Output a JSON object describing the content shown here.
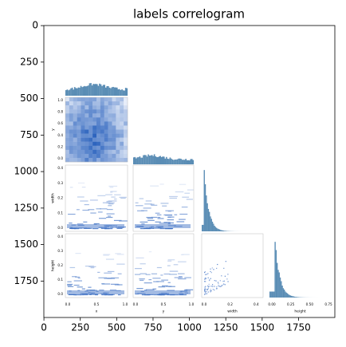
{
  "chart_data": {
    "type": "image",
    "title": "labels correlogram",
    "xlim": [
      -0.5,
      1999.5
    ],
    "ylim": [
      1999.5,
      -0.5
    ],
    "xticks": [
      0,
      250,
      500,
      750,
      1000,
      1250,
      1500,
      1750
    ],
    "yticks": [
      0,
      250,
      500,
      750,
      1000,
      1250,
      1500,
      1750
    ],
    "image_text": {
      "x_labels": [
        "x",
        "y",
        "width",
        "height"
      ],
      "y_labels": [
        "y",
        "width",
        "height"
      ],
      "x_ticks": [
        [
          "0.0",
          "0.5",
          "1.0"
        ],
        [
          "0.0",
          "0.5",
          "1.0"
        ],
        [
          "0.0",
          "0.2",
          "0.4"
        ],
        [
          "0.00",
          "0.25",
          "0.50",
          "0.75"
        ]
      ],
      "y_ticks": [
        [
          "0.0",
          "0.2",
          "0.4",
          "0.6",
          "0.8",
          "1.0"
        ],
        [
          "0.0",
          "0.1",
          "0.2",
          "0.3",
          "0.4"
        ],
        [
          "0.0",
          "0.1",
          "0.2",
          "0.3",
          "0.4"
        ]
      ]
    }
  }
}
